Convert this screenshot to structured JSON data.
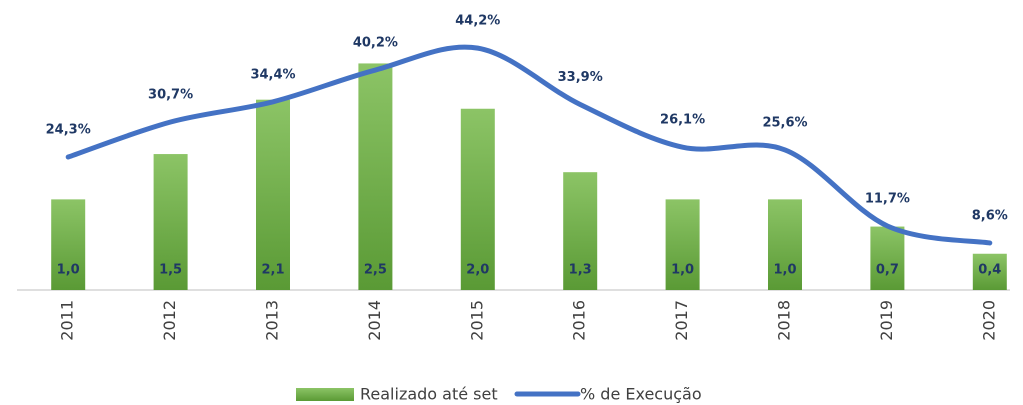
{
  "chart_data": {
    "type": "bar",
    "categories": [
      "2011",
      "2012",
      "2013",
      "2014",
      "2015",
      "2016",
      "2017",
      "2018",
      "2019",
      "2020"
    ],
    "series": [
      {
        "name": "Realizado até set",
        "type": "bar",
        "color": "#70ad47",
        "values": [
          1.0,
          1.5,
          2.1,
          2.5,
          2.0,
          1.3,
          1.0,
          1.0,
          0.7,
          0.4
        ],
        "value_labels": [
          "1,0",
          "1,5",
          "2,1",
          "2,5",
          "2,0",
          "1,3",
          "1,0",
          "1,0",
          "0,7",
          "0,4"
        ]
      },
      {
        "name": "% de Execução",
        "type": "line",
        "axis": "y2",
        "color": "#4472c4",
        "values": [
          24.3,
          30.7,
          34.4,
          40.2,
          44.2,
          33.9,
          26.1,
          25.6,
          11.7,
          8.6
        ],
        "value_labels": [
          "24,3%",
          "30,7%",
          "34,4%",
          "40,2%",
          "44,2%",
          "33,9%",
          "26,1%",
          "25,6%",
          "11,7%",
          "8,6%"
        ]
      }
    ],
    "ylim": [
      0,
      3.2
    ],
    "y2lim": [
      0,
      53
    ],
    "legend": "bottom"
  }
}
